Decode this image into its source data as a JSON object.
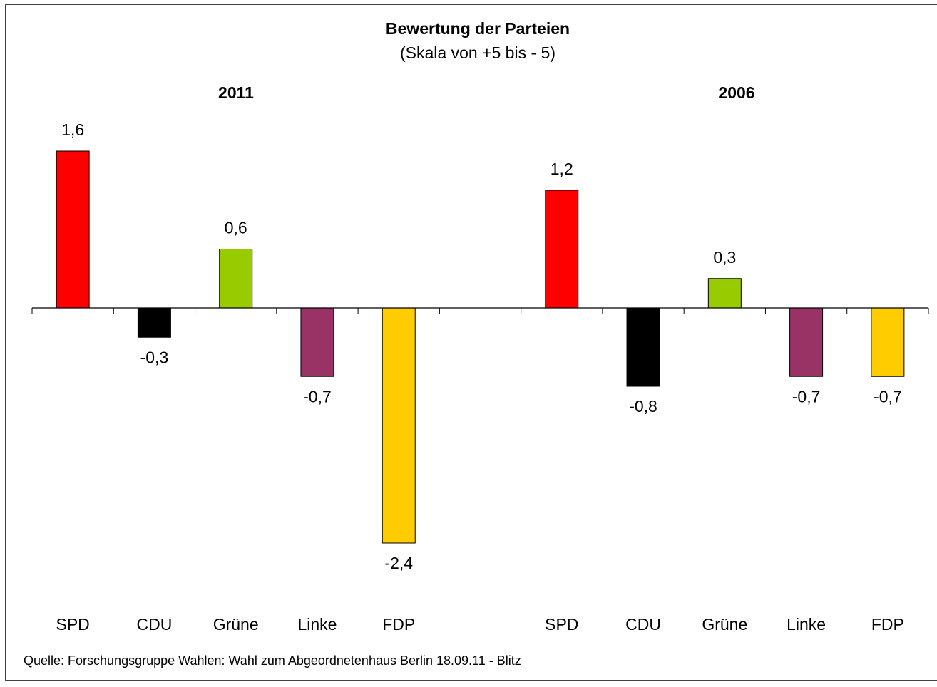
{
  "chart_data": {
    "type": "bar",
    "title": "Bewertung der Parteien",
    "subtitle": "(Skala von +5 bis - 5)",
    "groups": [
      "2011",
      "2006"
    ],
    "categories": [
      "SPD",
      "CDU",
      "Grüne",
      "Linke",
      "FDP",
      null,
      "SPD",
      "CDU",
      "Grüne",
      "Linke",
      "FDP"
    ],
    "values": [
      1.6,
      -0.3,
      0.6,
      -0.7,
      -2.4,
      null,
      1.2,
      -0.8,
      0.3,
      -0.7,
      -0.7
    ],
    "value_labels": [
      "1,6",
      "-0,3",
      "0,6",
      "-0,7",
      "-2,4",
      null,
      "1,2",
      "-0,8",
      "0,3",
      "-0,7",
      "-0,7"
    ],
    "colors": [
      "#ff0000",
      "#000000",
      "#99cc00",
      "#993366",
      "#ffcc00",
      null,
      "#ff0000",
      "#000000",
      "#99cc00",
      "#993366",
      "#ffcc00"
    ],
    "ylim": [
      -3,
      2
    ],
    "source": "Quelle: Forschungsgruppe Wahlen: Wahl zum Abgeordnetenhaus Berlin 18.09.11 - Blitz"
  }
}
